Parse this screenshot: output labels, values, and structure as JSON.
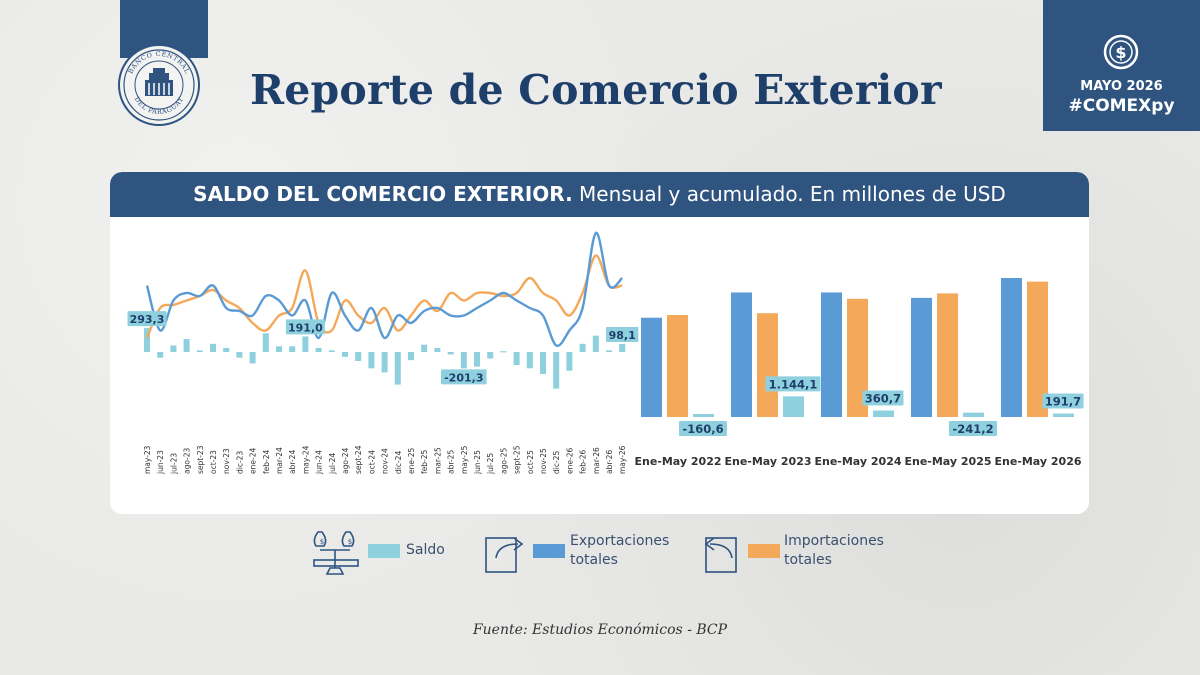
{
  "header": {
    "title": "Reporte de Comercio Exterior",
    "logo_top_text": "BANCO CENTRAL",
    "logo_bottom_text": "DEL PARAGUAY",
    "month": "MAYO 2026",
    "hashtag": "#COMEXpy"
  },
  "colors": {
    "brand": "#2f5480",
    "title": "#1f3f6b",
    "saldo": "#8fd0df",
    "exportaciones": "#5b9bd5",
    "importaciones": "#f4a95a"
  },
  "card": {
    "title_bold": "SALDO DEL COMERCIO EXTERIOR.",
    "title_rest": "Mensual y acumulado. En millones de USD"
  },
  "chart_data": [
    {
      "type": "line",
      "note": "Monthly series; bars = Saldo, lines = Exportaciones / Importaciones",
      "categories": [
        "may-23",
        "jun-23",
        "jul-23",
        "ago-23",
        "sept-23",
        "oct-23",
        "nov-23",
        "dic-23",
        "ene-24",
        "feb-24",
        "mar-24",
        "abr-24",
        "may-24",
        "jun-24",
        "jul-24",
        "ago-24",
        "sept-24",
        "oct-24",
        "nov-24",
        "dic-24",
        "ene-25",
        "feb-25",
        "mar-25",
        "abr-25",
        "may-25",
        "jun-25",
        "jul-25",
        "ago-25",
        "sept-25",
        "oct-25",
        "nov-25",
        "dic-25",
        "ene-26",
        "feb-26",
        "mar-26",
        "abr-26",
        "may-26"
      ],
      "series": [
        {
          "name": "Saldo",
          "kind": "bar",
          "values": [
            293.3,
            -70,
            80,
            160,
            20,
            100,
            50,
            -70,
            -140,
            230,
            70,
            70,
            191.0,
            50,
            20,
            -60,
            -110,
            -200,
            -250,
            -400,
            -100,
            90,
            50,
            -30,
            -201.3,
            -180,
            -80,
            10,
            -160,
            -200,
            -270,
            -450,
            -230,
            100,
            200,
            20,
            98.1
          ]
        },
        {
          "name": "Exportaciones totales",
          "kind": "line",
          "values": [
            1250,
            950,
            1150,
            1200,
            1180,
            1250,
            1100,
            1080,
            1050,
            1180,
            1150,
            1050,
            1150,
            900,
            1200,
            1050,
            950,
            1100,
            900,
            1050,
            1000,
            1080,
            1100,
            1050,
            1050,
            1100,
            1150,
            1200,
            1150,
            1100,
            1050,
            850,
            950,
            1100,
            1600,
            1250,
            1300
          ]
        },
        {
          "name": "Importaciones totales",
          "kind": "line",
          "values": [
            900,
            1100,
            1120,
            1150,
            1180,
            1220,
            1150,
            1100,
            1000,
            950,
            1050,
            1100,
            1350,
            1000,
            950,
            1150,
            1050,
            1000,
            1100,
            950,
            1050,
            1150,
            1080,
            1200,
            1150,
            1200,
            1200,
            1180,
            1200,
            1300,
            1200,
            1150,
            1050,
            1200,
            1450,
            1250,
            1250
          ]
        }
      ],
      "labeled_points": [
        {
          "category": "may-23",
          "label": "293,3"
        },
        {
          "category": "may-24",
          "label": "191,0"
        },
        {
          "category": "may-25",
          "label": "-201,3"
        },
        {
          "category": "may-26",
          "label": "98,1"
        }
      ]
    },
    {
      "type": "bar",
      "categories": [
        "Ene-May 2022",
        "Ene-May 2023",
        "Ene-May 2024",
        "Ene-May 2025",
        "Ene-May 2026"
      ],
      "series": [
        {
          "name": "Exportaciones totales",
          "values": [
            5500,
            6900,
            6900,
            6600,
            7700
          ]
        },
        {
          "name": "Importaciones totales",
          "values": [
            5650,
            5750,
            6550,
            6850,
            7500
          ]
        },
        {
          "name": "Saldo",
          "values": [
            -160.6,
            1144.1,
            360.7,
            -241.2,
            191.7
          ]
        }
      ],
      "saldo_labels": [
        "-160,6",
        "1.144,1",
        "360,7",
        "-241,2",
        "191,7"
      ]
    }
  ],
  "legend": [
    {
      "id": "saldo",
      "label": "Saldo"
    },
    {
      "id": "exportaciones",
      "label_line1": "Exportaciones",
      "label_line2": "totales"
    },
    {
      "id": "importaciones",
      "label_line1": "Importaciones",
      "label_line2": "totales"
    }
  ],
  "footer": {
    "source": "Fuente: Estudios Económicos - BCP"
  }
}
